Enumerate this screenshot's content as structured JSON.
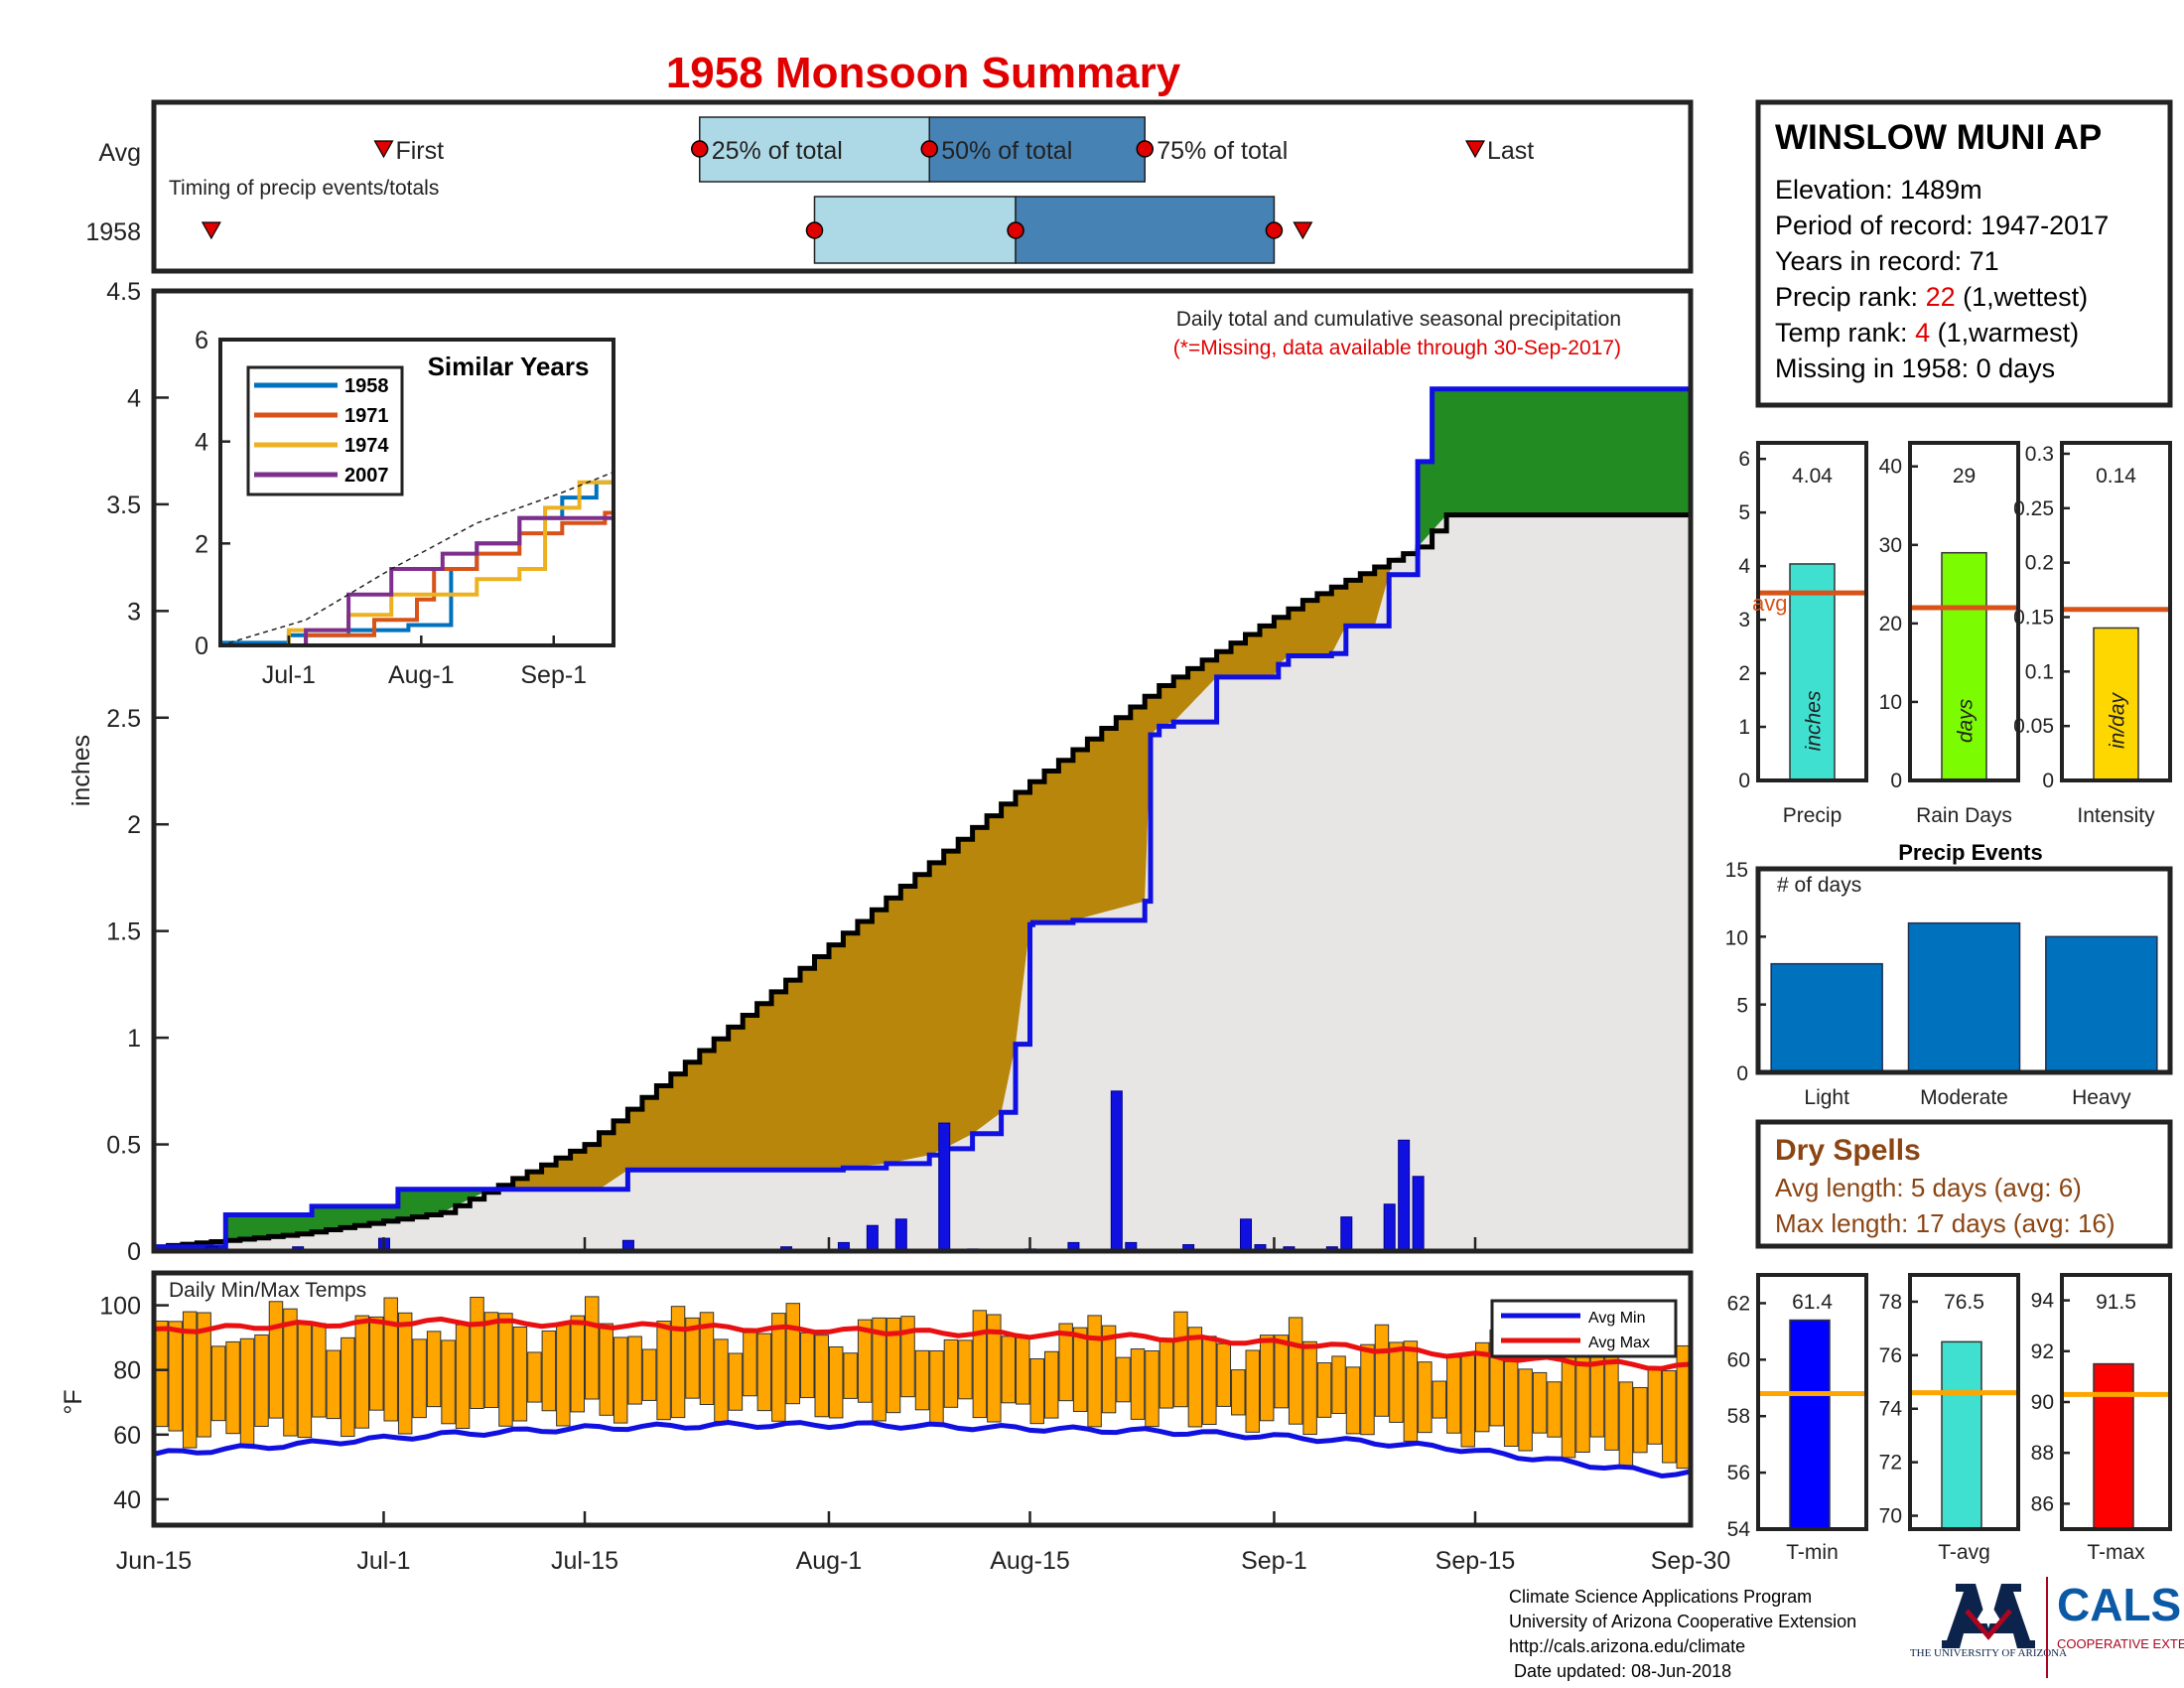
{
  "title": "1958 Monsoon Summary",
  "timing": {
    "row_labels": [
      "Avg",
      "1958"
    ],
    "note": "Timing of precip events/totals",
    "markers": {
      "first": "First",
      "p25": "25% of total",
      "p50": "50% of total",
      "p75": "75% of total",
      "last": "Last"
    },
    "avg_days": {
      "first": 16,
      "p25": 38,
      "p50": 54,
      "p75": 69,
      "last": 92
    },
    "year_days": {
      "first": 4,
      "p25": 46,
      "p50": 60,
      "p75": 78,
      "last": 80
    },
    "colors": {
      "light": "#add8e6",
      "dark": "#4682b4",
      "marker": "#e00000"
    }
  },
  "station": {
    "name": "WINSLOW MUNI AP",
    "elevation_label": "Elevation: 1489m",
    "period_label": "Period of record: 1947-2017",
    "years_label": "Years in record: 71",
    "precip_rank_prefix": "Precip rank: ",
    "precip_rank": "22",
    "precip_rank_suffix": " (1,wettest)",
    "temp_rank_prefix": "Temp rank: ",
    "temp_rank": "4",
    "temp_rank_suffix": " (1,warmest)",
    "missing_label": "Missing in 1958: 0 days"
  },
  "main_chart": {
    "annotation": "Daily total and cumulative seasonal precipitation",
    "missing_note": "(*=Missing, data available through 30-Sep-2017)",
    "ylabel": "inches",
    "x_ticks": [
      "Jun-15",
      "Jul-1",
      "Jul-15",
      "Aug-1",
      "Aug-15",
      "Sep-1",
      "Sep-15",
      "Sep-30"
    ],
    "y_ticks": [
      "0",
      "0.5",
      "1",
      "1.5",
      "2",
      "2.5",
      "3",
      "3.5",
      "4",
      "4.5"
    ]
  },
  "inset": {
    "title": "Similar Years",
    "x_ticks": [
      "Jul-1",
      "Aug-1",
      "Sep-1"
    ],
    "y_ticks": [
      "0",
      "2",
      "4",
      "6"
    ],
    "series": [
      {
        "name": "1958",
        "color": "#0072bd"
      },
      {
        "name": "1971",
        "color": "#d95319"
      },
      {
        "name": "1974",
        "color": "#edb120"
      },
      {
        "name": "2007",
        "color": "#7e2f8e"
      }
    ]
  },
  "temp_chart": {
    "label": "Daily Min/Max Temps",
    "ylabel": "°F",
    "y_ticks": [
      "40",
      "60",
      "80",
      "100"
    ],
    "legend": [
      "Avg Min",
      "Avg Max"
    ]
  },
  "small_bars": [
    {
      "label": "Precip",
      "value_label": "4.04",
      "unit": "inches",
      "avg_label": "avg",
      "y_ticks": [
        "0",
        "1",
        "2",
        "3",
        "4",
        "5",
        "6"
      ]
    },
    {
      "label": "Rain Days",
      "value_label": "29",
      "unit": "days",
      "y_ticks": [
        "0",
        "10",
        "20",
        "30",
        "40"
      ]
    },
    {
      "label": "Intensity",
      "value_label": "0.14",
      "unit": "in/day",
      "y_ticks": [
        "0",
        "0.05",
        "0.1",
        "0.15",
        "0.2",
        "0.25",
        "0.3"
      ]
    }
  ],
  "precip_events": {
    "title": "Precip Events",
    "ylabel": "# of days",
    "y_ticks": [
      "0",
      "5",
      "10",
      "15"
    ]
  },
  "dry_spells": {
    "title": "Dry Spells",
    "avg_length": "Avg length: 5 days (avg: 6)",
    "max_length": "Max length: 17 days (avg: 16)"
  },
  "temp_bars": [
    {
      "label": "T-min",
      "value_label": "61.4",
      "y_ticks": [
        "54",
        "56",
        "58",
        "60",
        "62"
      ]
    },
    {
      "label": "T-avg",
      "value_label": "76.5",
      "y_ticks": [
        "70",
        "72",
        "74",
        "76",
        "78"
      ]
    },
    {
      "label": "T-max",
      "value_label": "91.5",
      "y_ticks": [
        "86",
        "88",
        "90",
        "92",
        "94"
      ]
    }
  ],
  "footer": {
    "line1": "Climate Science Applications Program",
    "line2": "University of Arizona Cooperative Extension",
    "line3": "http://cals.arizona.edu/climate",
    "line4": " Date updated: 08-Jun-2018",
    "ua_logo": "THE UNIVERSITY OF ARIZONA",
    "cals_logo": "CALS",
    "cals_sub": "COOPERATIVE EXTENSION"
  },
  "chart_data": [
    {
      "type": "area",
      "title": "Daily total and cumulative seasonal precipitation",
      "xlabel": "",
      "ylabel": "inches",
      "x_range": [
        "Jun-15",
        "Sep-30"
      ],
      "ylim": [
        0,
        4.5
      ],
      "series": [
        {
          "name": "1958",
          "color": "#1010e0",
          "x_days": [
            0,
            4,
            5,
            11,
            16,
            17,
            23,
            31,
            33,
            48,
            51,
            54,
            55,
            57,
            59,
            60,
            61,
            61.2,
            64,
            69,
            69.4,
            70,
            71,
            74,
            78,
            78.3,
            79,
            82,
            83,
            85,
            86,
            88,
            89
          ],
          "values": [
            0.02,
            0.02,
            0.17,
            0.21,
            0.21,
            0.29,
            0.29,
            0.29,
            0.38,
            0.39,
            0.41,
            0.45,
            0.48,
            0.55,
            0.65,
            0.97,
            1.53,
            1.54,
            1.55,
            1.64,
            2.42,
            2.46,
            2.48,
            2.69,
            2.69,
            2.75,
            2.79,
            2.8,
            2.93,
            2.93,
            3.17,
            3.7,
            4.04
          ]
        },
        {
          "name": "Avg",
          "color": "#000000",
          "x_days": [
            0,
            10,
            20,
            30,
            40,
            50,
            60,
            70,
            80,
            88,
            90
          ],
          "values": [
            0.02,
            0.08,
            0.18,
            0.5,
            1.05,
            1.6,
            2.15,
            2.65,
            3.05,
            3.3,
            3.45
          ]
        }
      ],
      "daily_bars": {
        "x_days": [
          4,
          10,
          16,
          33,
          44,
          48,
          50,
          52,
          55,
          57,
          61,
          64,
          67,
          68,
          72,
          76,
          77,
          79,
          82,
          83,
          86,
          87,
          88
        ],
        "values": [
          0.02,
          0.02,
          0.06,
          0.05,
          0.02,
          0.04,
          0.12,
          0.15,
          0.6,
          0.01,
          0.01,
          0.04,
          0.75,
          0.04,
          0.03,
          0.15,
          0.03,
          0.02,
          0.02,
          0.16,
          0.22,
          0.52,
          0.35
        ]
      }
    },
    {
      "type": "line",
      "title": "Similar Years",
      "x_ticks": [
        "Jul-1",
        "Aug-1",
        "Sep-1"
      ],
      "ylim": [
        0,
        6
      ],
      "series": [
        {
          "name": "1958",
          "x_days": [
            0,
            16,
            30,
            44,
            54,
            60,
            70,
            80,
            88,
            92
          ],
          "values": [
            0.05,
            0.2,
            0.3,
            0.4,
            1.5,
            2.0,
            2.5,
            2.9,
            3.2,
            4.0
          ]
        },
        {
          "name": "1971",
          "x_days": [
            0,
            20,
            36,
            46,
            50,
            60,
            70,
            80,
            90,
            92
          ],
          "values": [
            0.0,
            0.2,
            0.5,
            0.9,
            1.5,
            1.8,
            2.2,
            2.4,
            2.6,
            3.3
          ]
        },
        {
          "name": "1974",
          "x_days": [
            0,
            16,
            30,
            40,
            60,
            70,
            76,
            84,
            92
          ],
          "values": [
            0.0,
            0.3,
            0.6,
            1.0,
            1.3,
            1.5,
            2.7,
            3.2,
            3.0
          ]
        },
        {
          "name": "2007",
          "x_days": [
            0,
            20,
            30,
            40,
            52,
            60,
            70,
            80,
            92
          ],
          "values": [
            0.0,
            0.3,
            1.0,
            1.5,
            1.8,
            2.0,
            2.5,
            2.5,
            2.4
          ]
        },
        {
          "name": "Avg",
          "x_days": [
            0,
            20,
            40,
            60,
            80,
            92
          ],
          "values": [
            0.0,
            0.5,
            1.5,
            2.4,
            3.0,
            3.4
          ]
        }
      ]
    },
    {
      "type": "bar",
      "title": "Daily Min/Max Temps",
      "ylabel": "°F",
      "ylim": [
        30,
        110
      ],
      "series": [
        {
          "name": "Avg Min",
          "x_days": [
            0,
            10,
            20,
            30,
            40,
            50,
            60,
            70,
            80,
            90,
            105
          ],
          "values": [
            54,
            57,
            60,
            62,
            63,
            63,
            62,
            61,
            59,
            56,
            48
          ]
        },
        {
          "name": "Avg Max",
          "x_days": [
            0,
            10,
            20,
            30,
            40,
            50,
            60,
            70,
            80,
            90,
            105
          ],
          "values": [
            92,
            94,
            95,
            94,
            93,
            92,
            91,
            90,
            88,
            85,
            81
          ]
        }
      ]
    },
    {
      "type": "bar",
      "categories": [
        "Precip"
      ],
      "values": [
        4.04
      ],
      "avg": 3.5,
      "ylim": [
        0,
        6.3
      ]
    },
    {
      "type": "bar",
      "categories": [
        "Rain Days"
      ],
      "values": [
        29
      ],
      "avg": 22,
      "ylim": [
        0,
        43
      ]
    },
    {
      "type": "bar",
      "categories": [
        "Intensity"
      ],
      "values": [
        0.14
      ],
      "avg": 0.157,
      "ylim": [
        0,
        0.31
      ]
    },
    {
      "type": "bar",
      "title": "Precip Events",
      "ylabel": "# of days",
      "categories": [
        "Light",
        "Moderate",
        "Heavy"
      ],
      "values": [
        8,
        11,
        10
      ],
      "ylim": [
        0,
        15
      ]
    },
    {
      "type": "bar",
      "categories": [
        "T-min"
      ],
      "values": [
        61.4
      ],
      "avg": 58.8,
      "ylim": [
        54,
        63
      ]
    },
    {
      "type": "bar",
      "categories": [
        "T-avg"
      ],
      "values": [
        76.5
      ],
      "avg": 74.6,
      "ylim": [
        69.5,
        79
      ]
    },
    {
      "type": "bar",
      "categories": [
        "T-max"
      ],
      "values": [
        91.5
      ],
      "avg": 90.3,
      "ylim": [
        85,
        95
      ]
    }
  ]
}
